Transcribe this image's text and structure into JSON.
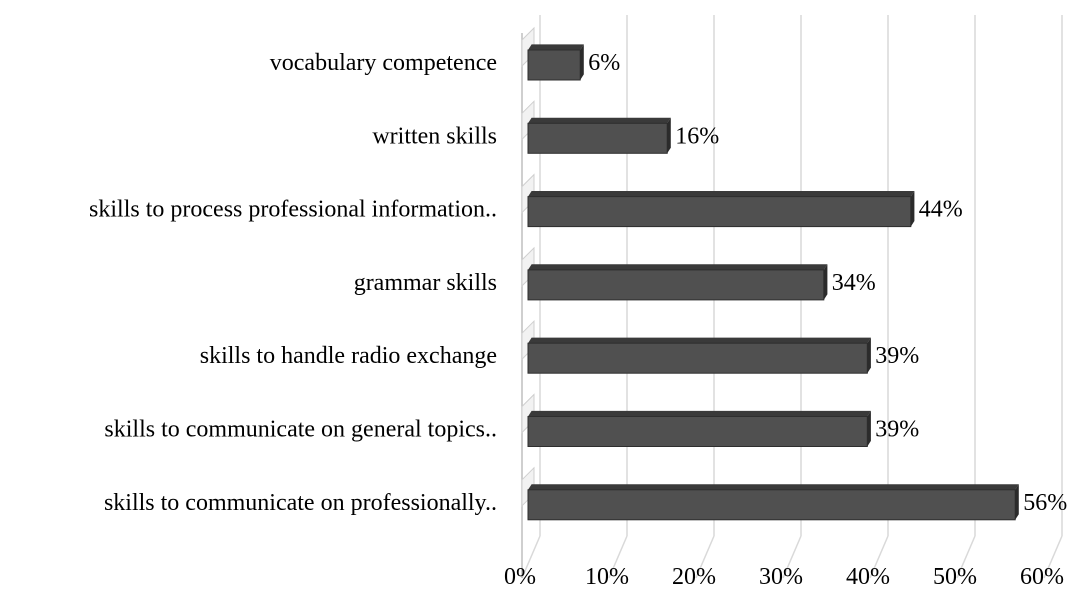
{
  "chart_data": {
    "type": "bar",
    "orientation": "horizontal",
    "style": "3d",
    "categories": [
      "vocabulary competence",
      "written skills",
      "skills to process professional information..",
      "grammar skills",
      "skills to handle radio exchange",
      "skills to communicate on general topics..",
      "skills to communicate on professionally.."
    ],
    "values": [
      6,
      16,
      44,
      34,
      39,
      39,
      56
    ],
    "value_labels": [
      "6%",
      "16%",
      "44%",
      "34%",
      "39%",
      "39%",
      "56%"
    ],
    "xlim": [
      0,
      60
    ],
    "x_ticks": [
      0,
      10,
      20,
      30,
      40,
      50,
      60
    ],
    "x_tick_labels": [
      "0%",
      "10%",
      "20%",
      "30%",
      "40%",
      "50%",
      "60%"
    ],
    "grid": true,
    "legend": "none",
    "bar_color": "#505050",
    "bar_top_color": "#3a3a3a",
    "bar_side_color": "#2b2b2b",
    "grid_color": "#d9d9d9",
    "axis_color": "#bfbfbf"
  }
}
